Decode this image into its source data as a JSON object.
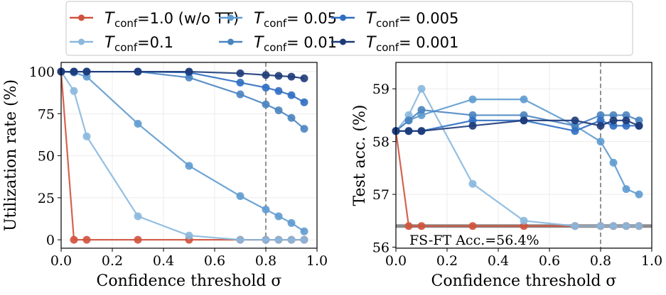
{
  "chart_data": [
    {
      "type": "line",
      "xlabel": "Confidence threshold σ",
      "ylabel": "Utilization rate (%)",
      "xlim": [
        0,
        1.0
      ],
      "ylim": [
        -5,
        105.5
      ],
      "xticks": [
        "0.0",
        "0.2",
        "0.4",
        "0.6",
        "0.8",
        "1.0"
      ],
      "yticks": [
        "0",
        "25",
        "50",
        "75",
        "100"
      ],
      "grid": true,
      "vline": {
        "x": 0.8,
        "style": "dashed",
        "color": "#777777"
      },
      "x": [
        0,
        0.05,
        0.1,
        0.3,
        0.5,
        0.7,
        0.8,
        0.85,
        0.9,
        0.95
      ],
      "series": [
        {
          "key": "t10",
          "values": [
            100,
            0,
            0,
            0,
            0,
            0,
            0,
            0,
            0,
            0
          ]
        },
        {
          "key": "t01",
          "values": [
            100,
            88.5,
            61.5,
            14,
            2.5,
            0,
            0,
            0,
            0,
            0
          ]
        },
        {
          "key": "t005",
          "values": [
            100,
            99.5,
            97,
            69,
            44,
            26,
            18,
            14,
            10,
            5
          ]
        },
        {
          "key": "t001",
          "values": [
            100,
            100,
            100,
            100,
            96.5,
            86.5,
            80.5,
            77,
            72.5,
            66
          ]
        },
        {
          "key": "t0005",
          "values": [
            100,
            100,
            100,
            100,
            99.5,
            93.5,
            90.5,
            88.5,
            86,
            81.8
          ]
        },
        {
          "key": "t0001",
          "values": [
            100,
            100,
            100,
            100,
            100,
            99,
            98,
            97.5,
            97,
            96
          ]
        }
      ]
    },
    {
      "type": "line",
      "xlabel": "Confidence threshold σ",
      "ylabel": "Test acc. (%)",
      "xlim": [
        0,
        1.0
      ],
      "ylim": [
        55.98,
        59.5
      ],
      "xticks": [
        "0.0",
        "0.2",
        "0.4",
        "0.6",
        "0.8",
        "1.0"
      ],
      "yticks": [
        "56",
        "57",
        "58",
        "59"
      ],
      "grid": true,
      "vline": {
        "x": 0.8,
        "style": "dashed",
        "color": "#777777"
      },
      "hline": {
        "y": 56.4,
        "color": "#808080",
        "label": "FS-FT Acc.=56.4%"
      },
      "x": [
        0,
        0.05,
        0.1,
        0.3,
        0.5,
        0.7,
        0.8,
        0.85,
        0.9,
        0.95
      ],
      "series": [
        {
          "key": "t10",
          "values": [
            58.2,
            56.4,
            56.4,
            56.4,
            56.4,
            56.4,
            56.4,
            56.4,
            56.4,
            56.4
          ]
        },
        {
          "key": "t01",
          "values": [
            58.2,
            58.5,
            59.0,
            57.2,
            56.5,
            56.4,
            56.4,
            56.4,
            56.4,
            56.4
          ]
        },
        {
          "key": "t005",
          "values": [
            58.2,
            58.4,
            58.5,
            58.8,
            58.8,
            58.3,
            58.0,
            57.6,
            57.1,
            57.0
          ]
        },
        {
          "key": "t001",
          "values": [
            58.2,
            58.4,
            58.6,
            58.5,
            58.5,
            58.3,
            58.5,
            58.5,
            58.5,
            58.4
          ]
        },
        {
          "key": "t0005",
          "values": [
            58.2,
            58.2,
            58.2,
            58.4,
            58.4,
            58.2,
            58.4,
            58.3,
            58.3,
            58.3
          ]
        },
        {
          "key": "t0001",
          "values": [
            58.2,
            58.2,
            58.2,
            58.3,
            58.4,
            58.4,
            58.3,
            58.4,
            58.4,
            58.3
          ]
        }
      ]
    }
  ],
  "legend": {
    "placement": "top",
    "entries": [
      {
        "key": "t10",
        "symbol": "T",
        "subscript": "conf",
        "value": "=1.0 (w/o TT)",
        "color": "#d0523c"
      },
      {
        "key": "t01",
        "symbol": "T",
        "subscript": "conf",
        "value": "=0.1",
        "color": "#8ab8de"
      },
      {
        "key": "t005",
        "symbol": "T",
        "subscript": "conf",
        "value": "= 0.05",
        "color": "#5e9bd0"
      },
      {
        "key": "t001",
        "symbol": "T",
        "subscript": "conf",
        "value": "= 0.01",
        "color": "#4a84c0"
      },
      {
        "key": "t0005",
        "symbol": "T",
        "subscript": "conf",
        "value": "= 0.005",
        "color": "#2f6ec2"
      },
      {
        "key": "t0001",
        "symbol": "T",
        "subscript": "conf",
        "value": "= 0.001",
        "color": "#1d3a78"
      }
    ]
  }
}
